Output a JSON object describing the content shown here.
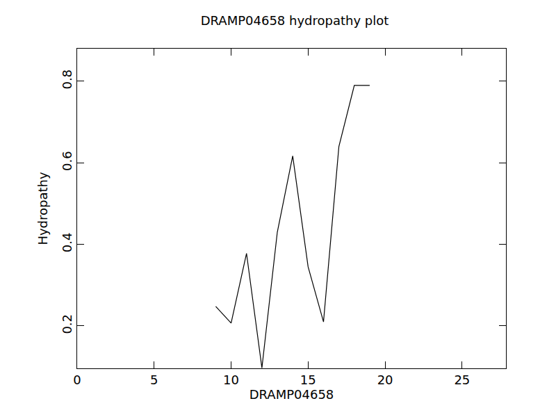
{
  "chart_data": {
    "type": "line",
    "title": "DRAMP04658 hydropathy plot",
    "x_label": "DRAMP04658",
    "y_label": "Hydropathy",
    "x": [
      9,
      10,
      11,
      12,
      13,
      14,
      15,
      16,
      17,
      18,
      19
    ],
    "values": [
      0.248,
      0.207,
      0.378,
      0.097,
      0.43,
      0.617,
      0.345,
      0.21,
      0.64,
      0.79,
      0.79
    ],
    "color": "#000000",
    "xlim": [
      0,
      27.85
    ],
    "xticks": [
      0,
      5,
      10,
      15,
      20,
      25
    ],
    "ylim": [
      0.096,
      0.88
    ],
    "yticks": [
      0.2,
      0.4,
      0.6,
      0.8
    ],
    "grid": false
  }
}
